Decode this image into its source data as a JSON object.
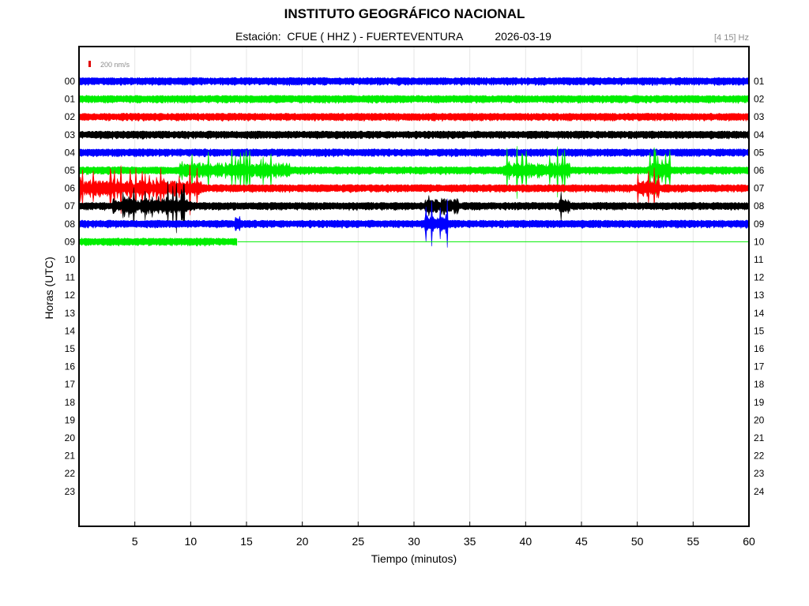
{
  "header": {
    "title": "INSTITUTO GEOGRÁFICO NACIONAL",
    "station_label": "Estación:  CFUE ( HHZ ) - FUERTEVENTURA",
    "date": "2026-03-19",
    "filter": "[4 15] Hz"
  },
  "scale": {
    "label": "200 nm/s",
    "color": "#e00000"
  },
  "chart_data": {
    "type": "line",
    "title": "INSTITUTO GEOGRÁFICO NACIONAL",
    "xlabel": "Tiempo (minutos)",
    "ylabel": "Horas (UTC)",
    "xlim": [
      0,
      60
    ],
    "x_ticks": [
      "5",
      "10",
      "15",
      "20",
      "25",
      "30",
      "35",
      "40",
      "45",
      "50",
      "55",
      "60"
    ],
    "x_tick_values": [
      5,
      10,
      15,
      20,
      25,
      30,
      35,
      40,
      45,
      50,
      55,
      60
    ],
    "left_ticks": [
      "00",
      "01",
      "02",
      "03",
      "04",
      "05",
      "06",
      "07",
      "08",
      "09",
      "10",
      "11",
      "12",
      "13",
      "14",
      "15",
      "16",
      "17",
      "18",
      "19",
      "20",
      "21",
      "22",
      "23"
    ],
    "right_ticks": [
      "01",
      "02",
      "03",
      "04",
      "05",
      "06",
      "07",
      "08",
      "09",
      "10",
      "11",
      "12",
      "13",
      "14",
      "15",
      "16",
      "17",
      "18",
      "19",
      "20",
      "21",
      "22",
      "23",
      "24"
    ],
    "grid": "vertical",
    "series_colors": [
      "#0000ff",
      "#00ee00",
      "#ff0000",
      "#000000"
    ],
    "traces": [
      {
        "hour": "00",
        "color": "#0000ff",
        "end_minute": 60,
        "bursts": []
      },
      {
        "hour": "01",
        "color": "#00ee00",
        "end_minute": 60,
        "bursts": []
      },
      {
        "hour": "02",
        "color": "#ff0000",
        "end_minute": 60,
        "bursts": []
      },
      {
        "hour": "03",
        "color": "#000000",
        "end_minute": 60,
        "bursts": []
      },
      {
        "hour": "04",
        "color": "#0000ff",
        "end_minute": 60,
        "bursts": []
      },
      {
        "hour": "05",
        "color": "#00ee00",
        "end_minute": 60,
        "bursts": [
          [
            9,
            19
          ],
          [
            38,
            44
          ],
          [
            51,
            53
          ]
        ]
      },
      {
        "hour": "06",
        "color": "#ff0000",
        "end_minute": 60,
        "bursts": [
          [
            0,
            11
          ],
          [
            50,
            52
          ]
        ]
      },
      {
        "hour": "07",
        "color": "#000000",
        "end_minute": 60,
        "bursts": [
          [
            3,
            10
          ],
          [
            31,
            34
          ],
          [
            43,
            44
          ]
        ]
      },
      {
        "hour": "08",
        "color": "#0000ff",
        "end_minute": 60,
        "bursts": [
          [
            14,
            14.5
          ],
          [
            31,
            33
          ]
        ]
      },
      {
        "hour": "09",
        "color": "#00ee00",
        "end_minute": 14.2,
        "bursts": []
      }
    ]
  }
}
